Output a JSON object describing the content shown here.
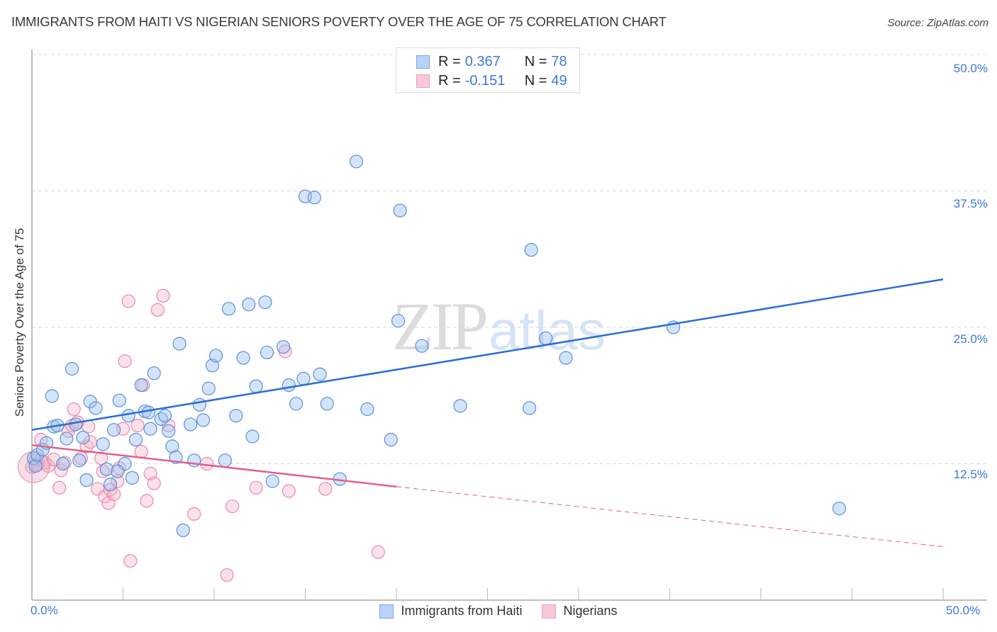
{
  "header": {
    "title": "IMMIGRANTS FROM HAITI VS NIGERIAN SENIORS POVERTY OVER THE AGE OF 75 CORRELATION CHART",
    "source": "Source: ZipAtlas.com"
  },
  "watermark": {
    "zip": "ZIP",
    "atlas": "atlas"
  },
  "stats_box": {
    "rows": [
      {
        "r_label": "R =",
        "r_value": "0.367",
        "n_label": "N =",
        "n_value": "78",
        "color": "#3d78d8",
        "fill": "#b8d3f5"
      },
      {
        "r_label": "R =",
        "r_value": "-0.151",
        "n_label": "N =",
        "n_value": "49",
        "color": "#e8799e",
        "fill": "#f8c8d7"
      }
    ]
  },
  "axes": {
    "ylabel": "Seniors Poverty Over the Age of 75",
    "y_ticks": [
      "50.0%",
      "37.5%",
      "25.0%",
      "12.5%"
    ],
    "x_ticks": [
      "0.0%",
      "50.0%"
    ]
  },
  "legend": {
    "items": [
      {
        "label": "Immigrants from Haiti",
        "color": "#3d78d8",
        "fill": "#b8d3f5"
      },
      {
        "label": "Nigerians",
        "color": "#e8799e",
        "fill": "#f8c8d7"
      }
    ]
  },
  "colors": {
    "haiti_line": "#2a6dd6",
    "nigeria_line": "#e0608c",
    "haiti_point_fill": "rgba(160,196,240,0.45)",
    "haiti_point_stroke": "#5a8fdc",
    "nigeria_point_fill": "rgba(246,180,200,0.4)",
    "nigeria_point_stroke": "#e88aa9",
    "tick_label": "#3d78d8",
    "grid": "#d8d8d8"
  },
  "chart_data": {
    "type": "scatter",
    "title": "IMMIGRANTS FROM HAITI VS NIGERIAN SENIORS POVERTY OVER THE AGE OF 75 CORRELATION CHART",
    "xlabel": "Immigrants from Haiti (%)",
    "ylabel": "Seniors Poverty Over the Age of 75",
    "xlim": [
      0,
      50
    ],
    "ylim": [
      0,
      50
    ],
    "y_ticks": [
      12.5,
      25.0,
      37.5,
      50.0
    ],
    "x_ticks_labeled": [
      0,
      50
    ],
    "grid": true,
    "legend_position": "bottom",
    "series": [
      {
        "name": "Immigrants from Haiti",
        "R": 0.367,
        "N": 78,
        "trend": {
          "x0": 0,
          "y0": 15.6,
          "x1": 50,
          "y1": 29.4
        },
        "points": [
          [
            0.1,
            13.0
          ],
          [
            0.2,
            12.3
          ],
          [
            0.3,
            13.3
          ],
          [
            0.6,
            13.8
          ],
          [
            0.8,
            14.4
          ],
          [
            1.1,
            18.7
          ],
          [
            1.2,
            15.9
          ],
          [
            1.4,
            16.0
          ],
          [
            1.7,
            12.5
          ],
          [
            1.9,
            14.8
          ],
          [
            2.2,
            21.2
          ],
          [
            2.4,
            16.1
          ],
          [
            2.6,
            12.8
          ],
          [
            2.8,
            14.9
          ],
          [
            3.0,
            11.0
          ],
          [
            3.2,
            18.2
          ],
          [
            3.5,
            17.6
          ],
          [
            3.9,
            14.3
          ],
          [
            4.1,
            12.0
          ],
          [
            4.3,
            10.6
          ],
          [
            4.5,
            15.6
          ],
          [
            4.8,
            18.3
          ],
          [
            5.1,
            12.5
          ],
          [
            5.3,
            16.9
          ],
          [
            5.5,
            11.2
          ],
          [
            5.7,
            14.7
          ],
          [
            6.0,
            19.7
          ],
          [
            6.2,
            17.3
          ],
          [
            6.4,
            17.2
          ],
          [
            6.5,
            15.7
          ],
          [
            6.7,
            20.8
          ],
          [
            7.1,
            16.6
          ],
          [
            7.3,
            16.9
          ],
          [
            7.5,
            15.5
          ],
          [
            7.7,
            14.1
          ],
          [
            7.9,
            13.1
          ],
          [
            8.1,
            23.5
          ],
          [
            8.3,
            6.4
          ],
          [
            8.7,
            16.1
          ],
          [
            8.9,
            12.8
          ],
          [
            9.2,
            17.9
          ],
          [
            9.4,
            16.5
          ],
          [
            9.7,
            19.4
          ],
          [
            9.9,
            21.5
          ],
          [
            10.1,
            22.4
          ],
          [
            10.6,
            12.8
          ],
          [
            10.8,
            26.7
          ],
          [
            11.2,
            16.9
          ],
          [
            11.6,
            22.2
          ],
          [
            11.9,
            27.1
          ],
          [
            12.1,
            15.0
          ],
          [
            12.3,
            19.6
          ],
          [
            12.8,
            27.3
          ],
          [
            12.9,
            22.7
          ],
          [
            13.2,
            10.9
          ],
          [
            13.8,
            23.2
          ],
          [
            14.1,
            19.7
          ],
          [
            14.5,
            18.0
          ],
          [
            14.9,
            20.3
          ],
          [
            15.0,
            37.0
          ],
          [
            15.5,
            36.9
          ],
          [
            15.8,
            20.7
          ],
          [
            16.2,
            18.0
          ],
          [
            16.9,
            11.1
          ],
          [
            17.8,
            40.2
          ],
          [
            18.4,
            17.5
          ],
          [
            19.7,
            14.7
          ],
          [
            20.1,
            25.6
          ],
          [
            20.2,
            35.7
          ],
          [
            21.4,
            23.3
          ],
          [
            23.5,
            17.8
          ],
          [
            27.3,
            17.6
          ],
          [
            27.4,
            32.1
          ],
          [
            28.2,
            24.0
          ],
          [
            29.3,
            22.2
          ],
          [
            35.2,
            25.0
          ],
          [
            44.3,
            8.4
          ],
          [
            4.7,
            11.8
          ]
        ]
      },
      {
        "name": "Nigerians",
        "R": -0.151,
        "N": 49,
        "trend": {
          "x0": 0,
          "y0": 14.2,
          "x1": 20.0,
          "y1": 10.4,
          "dashed_to": {
            "x": 50,
            "y": 4.9
          }
        },
        "points": [
          [
            0.0,
            12.2
          ],
          [
            0.2,
            12.8
          ],
          [
            0.5,
            14.7
          ],
          [
            0.7,
            12.6
          ],
          [
            0.9,
            12.3
          ],
          [
            1.2,
            12.9
          ],
          [
            1.5,
            10.3
          ],
          [
            1.6,
            11.9
          ],
          [
            1.8,
            12.6
          ],
          [
            2.0,
            15.5
          ],
          [
            2.2,
            16.0
          ],
          [
            2.3,
            17.5
          ],
          [
            2.5,
            16.3
          ],
          [
            2.7,
            13.0
          ],
          [
            3.0,
            14.1
          ],
          [
            3.1,
            15.9
          ],
          [
            3.2,
            14.5
          ],
          [
            3.6,
            10.2
          ],
          [
            3.8,
            13.0
          ],
          [
            3.9,
            11.8
          ],
          [
            4.0,
            9.5
          ],
          [
            4.2,
            8.9
          ],
          [
            4.3,
            10.1
          ],
          [
            4.5,
            9.7
          ],
          [
            4.7,
            10.9
          ],
          [
            4.8,
            12.1
          ],
          [
            5.0,
            15.7
          ],
          [
            5.1,
            21.9
          ],
          [
            5.3,
            27.4
          ],
          [
            5.4,
            3.6
          ],
          [
            5.8,
            16.0
          ],
          [
            6.0,
            13.6
          ],
          [
            6.1,
            19.7
          ],
          [
            6.3,
            9.1
          ],
          [
            6.5,
            11.6
          ],
          [
            6.7,
            10.7
          ],
          [
            6.9,
            26.6
          ],
          [
            7.2,
            27.9
          ],
          [
            7.5,
            16.0
          ],
          [
            8.9,
            7.9
          ],
          [
            9.6,
            12.5
          ],
          [
            10.7,
            2.3
          ],
          [
            11.0,
            8.6
          ],
          [
            12.3,
            10.3
          ],
          [
            13.9,
            22.8
          ],
          [
            14.1,
            10.0
          ],
          [
            16.1,
            10.2
          ],
          [
            19.0,
            4.4
          ],
          [
            0.3,
            12.4
          ]
        ]
      }
    ]
  }
}
